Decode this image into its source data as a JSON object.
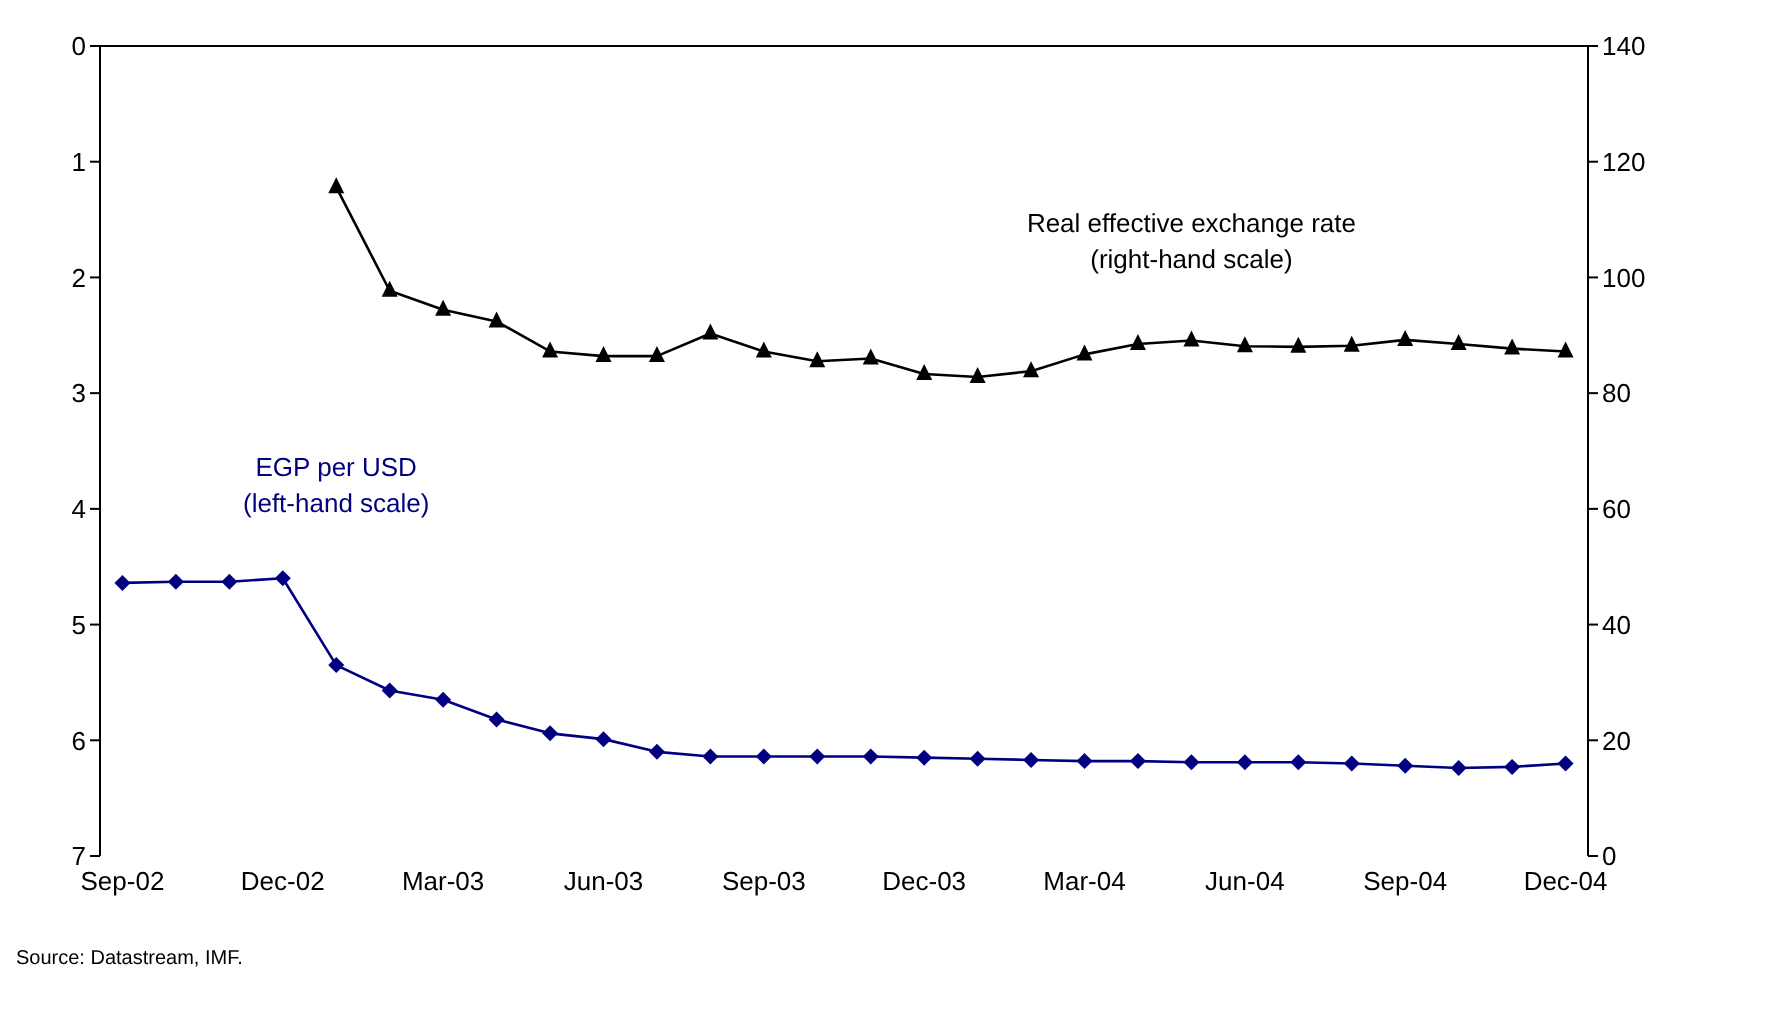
{
  "chart_data": {
    "type": "line",
    "categories": [
      "Sep-02",
      null,
      null,
      "Dec-02",
      null,
      null,
      "Mar-03",
      null,
      null,
      "Jun-03",
      null,
      null,
      "Sep-03",
      null,
      null,
      "Dec-03",
      null,
      null,
      "Mar-04",
      null,
      null,
      "Jun-04",
      null,
      null,
      "Sep-04",
      null,
      null,
      "Dec-04"
    ],
    "series": [
      {
        "name": "EGP per USD\n(left-hand scale)",
        "color": "#000080",
        "marker": "diamond",
        "values": [
          4.64,
          4.63,
          4.63,
          4.6,
          5.35,
          5.57,
          5.65,
          5.82,
          5.94,
          5.99,
          6.1,
          6.14,
          6.14,
          6.14,
          6.14,
          6.15,
          6.16,
          6.17,
          6.18,
          6.18,
          6.19,
          6.19,
          6.19,
          6.2,
          6.22,
          6.24,
          6.23,
          6.2
        ]
      },
      {
        "name": "Real effective exchange rate\n(right-hand scale)",
        "color": "#000000",
        "marker": "triangle",
        "axis": "y2",
        "values": [
          null,
          null,
          null,
          null,
          115.6,
          97.7,
          94.4,
          92.4,
          87.2,
          86.4,
          86.4,
          90.3,
          87.2,
          85.5,
          86.0,
          83.3,
          82.8,
          83.8,
          86.7,
          88.5,
          89.1,
          88.1,
          88.0,
          88.2,
          89.2,
          88.5,
          87.7,
          87.2
        ]
      }
    ],
    "ylim": [
      7,
      0
    ],
    "yticks": [
      0,
      1,
      2,
      3,
      4,
      5,
      6,
      7
    ],
    "y2lim": [
      0,
      140
    ],
    "y2ticks": [
      0,
      20,
      40,
      60,
      80,
      100,
      120,
      140
    ],
    "grid": false,
    "annotations": [
      "Source: Datastream, IMF."
    ]
  }
}
